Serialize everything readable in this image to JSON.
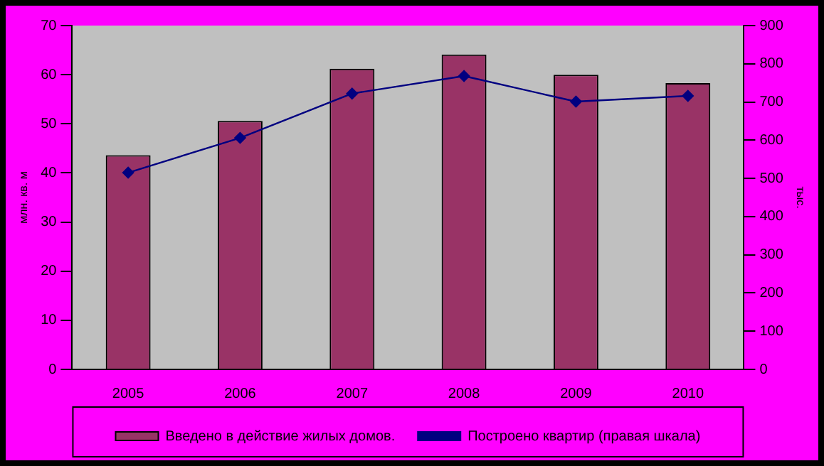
{
  "chart_data": {
    "type": "bar",
    "categories": [
      "2005",
      "2006",
      "2007",
      "2008",
      "2009",
      "2010"
    ],
    "series": [
      {
        "name": "Введено в действие жилых домов.",
        "color": "#993366",
        "values": [
          43.6,
          50.6,
          61.2,
          64.1,
          60.0,
          58.3
        ]
      },
      {
        "name": "Построено квартир (правая шкала)",
        "type": "line",
        "axis": "y2",
        "color": "#000080",
        "values": [
          515,
          606,
          722,
          768,
          701,
          716
        ]
      }
    ],
    "ylabel": "млн. кв. м",
    "y2label": "тыс.",
    "ylim": [
      0,
      70
    ],
    "yticks": [
      0,
      10,
      20,
      30,
      40,
      50,
      60,
      70
    ],
    "y2lim": [
      0,
      900
    ],
    "y2ticks": [
      0,
      100,
      200,
      300,
      400,
      500,
      600,
      700,
      800,
      900
    ],
    "grid": false,
    "legend": "bottom",
    "marker": "diamond",
    "line_style": "solid"
  }
}
